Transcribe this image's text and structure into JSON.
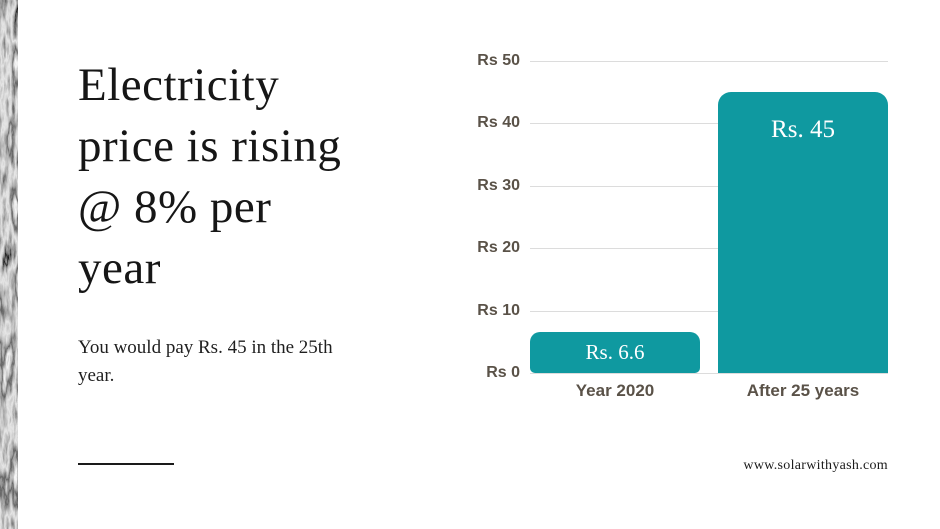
{
  "headline": {
    "lines": [
      "Electricity",
      "price is rising",
      "@ 8% per",
      "year"
    ],
    "subtitle": "You would pay Rs. 45 in the 25th year."
  },
  "footer": {
    "url": "www.solarwithyash.com"
  },
  "colors": {
    "bar": "#0f99a0",
    "axis_text": "#5a5248",
    "gridline": "#dcdcdc",
    "bar_label_text": "#ffffff",
    "heading_text": "#161616"
  },
  "chart_data": {
    "type": "bar",
    "title": "",
    "xlabel": "",
    "ylabel": "",
    "categories": [
      "Year 2020",
      "After 25 years"
    ],
    "values": [
      6.6,
      45
    ],
    "bar_labels": [
      "Rs. 6.6",
      "Rs. 45"
    ],
    "ytick_labels": [
      "Rs 50",
      "Rs 40",
      "Rs 30",
      "Rs 20",
      "Rs 10",
      "Rs 0"
    ],
    "ylim": [
      0,
      50
    ],
    "grid": true,
    "legend": false
  }
}
